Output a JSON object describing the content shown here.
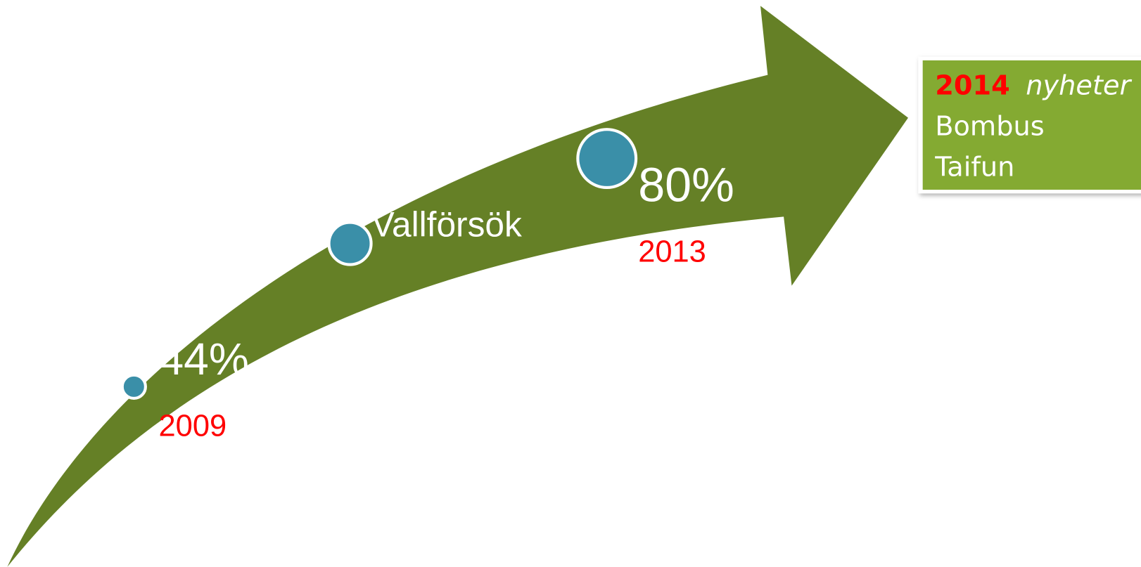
{
  "milestones": [
    {
      "value": "44%",
      "year": "2009"
    },
    {
      "label": "Vallförsök"
    },
    {
      "value": "80%",
      "year": "2013"
    }
  ],
  "panel": {
    "year": "2014",
    "heading": "nyheter",
    "items": [
      "Bombus",
      "Taifun"
    ]
  }
}
